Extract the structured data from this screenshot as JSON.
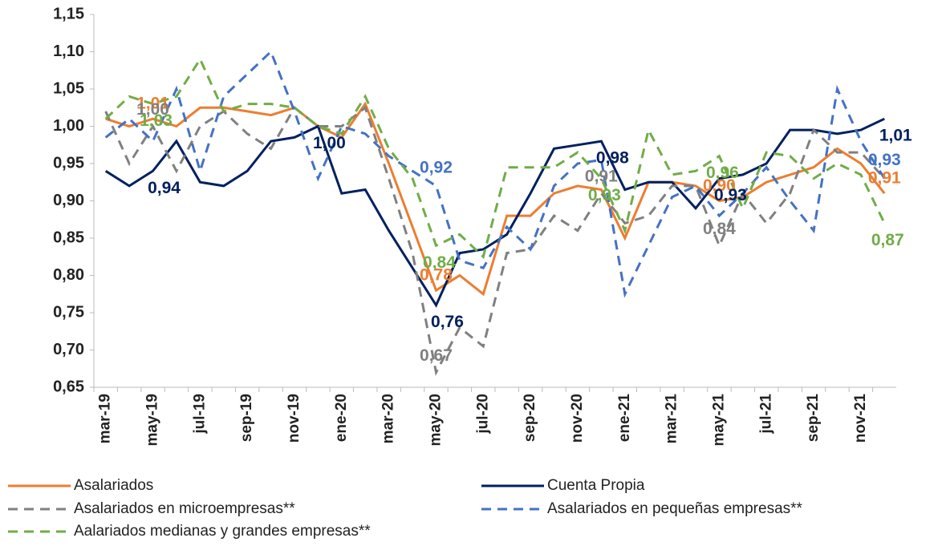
{
  "chart_data": {
    "type": "line",
    "categories": [
      "mar-19",
      null,
      "may-19",
      null,
      "jul-19",
      null,
      "sep-19",
      null,
      "nov-19",
      null,
      "ene-20",
      null,
      "mar-20",
      null,
      "may-20",
      null,
      "jul-20",
      null,
      "sep-20",
      null,
      "nov-20",
      null,
      "ene-21",
      null,
      "mar-21",
      null,
      "may-21",
      null,
      "jul-21",
      null,
      "sep-21",
      null,
      "nov-21",
      null
    ],
    "ylim": [
      0.65,
      1.15
    ],
    "yticks": [
      {
        "value": 0.65,
        "label": "0,65"
      },
      {
        "value": 0.7,
        "label": "0,70"
      },
      {
        "value": 0.75,
        "label": "0,75"
      },
      {
        "value": 0.8,
        "label": "0,80"
      },
      {
        "value": 0.85,
        "label": "0,85"
      },
      {
        "value": 0.9,
        "label": "0,90"
      },
      {
        "value": 0.95,
        "label": "0,95"
      },
      {
        "value": 1.0,
        "label": "1,00"
      },
      {
        "value": 1.05,
        "label": "1,05"
      },
      {
        "value": 1.1,
        "label": "1,10"
      },
      {
        "value": 1.15,
        "label": "1,15"
      }
    ],
    "series": [
      {
        "name": "Asalariados",
        "color": "#ed7d31",
        "dashed": false,
        "values": [
          1.01,
          1.0,
          1.01,
          1.0,
          1.025,
          1.025,
          1.02,
          1.015,
          1.025,
          1.0,
          0.985,
          1.03,
          0.95,
          0.865,
          0.78,
          0.8,
          0.775,
          0.88,
          0.88,
          0.91,
          0.92,
          0.915,
          0.85,
          0.925,
          0.925,
          0.92,
          0.9,
          0.905,
          0.925,
          0.935,
          0.945,
          0.97,
          0.95,
          0.91
        ],
        "value_labels": [
          null,
          null,
          "1,01",
          null,
          null,
          null,
          null,
          null,
          null,
          null,
          null,
          null,
          null,
          null,
          "0,78",
          null,
          null,
          null,
          null,
          null,
          null,
          null,
          null,
          null,
          null,
          null,
          "0,90",
          null,
          null,
          null,
          null,
          null,
          null,
          "0,91"
        ]
      },
      {
        "name": "Cuenta Propia",
        "color": "#002060",
        "dashed": false,
        "values": [
          0.94,
          0.92,
          0.94,
          0.98,
          0.925,
          0.92,
          0.94,
          0.98,
          0.985,
          1.0,
          0.91,
          0.915,
          0.86,
          0.81,
          0.76,
          0.83,
          0.835,
          0.855,
          0.91,
          0.97,
          0.975,
          0.98,
          0.915,
          0.925,
          0.925,
          0.89,
          0.93,
          0.935,
          0.95,
          0.995,
          0.995,
          0.99,
          0.995,
          1.01
        ],
        "value_labels": [
          null,
          null,
          "0,94",
          null,
          null,
          null,
          null,
          null,
          null,
          "1,00",
          null,
          null,
          null,
          null,
          "0,76",
          null,
          null,
          null,
          null,
          null,
          null,
          "0,98",
          null,
          null,
          null,
          null,
          "0,93",
          null,
          null,
          null,
          null,
          null,
          null,
          "1,01"
        ]
      },
      {
        "name": "Asalariados en microempresas**",
        "color": "#808080",
        "dashed": true,
        "values": [
          1.02,
          0.95,
          1.0,
          0.94,
          1.0,
          1.02,
          0.99,
          0.97,
          1.025,
          1.0,
          1.0,
          1.025,
          0.93,
          0.83,
          0.67,
          0.73,
          0.705,
          0.83,
          0.835,
          0.88,
          0.86,
          0.91,
          0.87,
          0.88,
          0.92,
          0.92,
          0.84,
          0.91,
          0.87,
          0.91,
          0.995,
          0.965,
          0.965,
          0.93
        ],
        "value_labels": [
          null,
          null,
          "1,00",
          null,
          null,
          null,
          null,
          null,
          null,
          null,
          null,
          null,
          null,
          null,
          "0,67",
          null,
          null,
          null,
          null,
          null,
          null,
          "0,91",
          null,
          null,
          null,
          null,
          "0,84",
          null,
          null,
          null,
          null,
          null,
          null,
          null
        ]
      },
      {
        "name": "Asalariados en pequeñas empresas**",
        "color": "#4472c4",
        "dashed": true,
        "values": [
          0.985,
          1.01,
          0.98,
          1.05,
          0.94,
          1.04,
          1.07,
          1.1,
          1.02,
          0.93,
          1.0,
          0.99,
          0.96,
          0.94,
          0.92,
          0.82,
          0.81,
          0.865,
          0.835,
          0.92,
          0.95,
          0.955,
          0.775,
          0.84,
          0.905,
          0.92,
          0.88,
          0.91,
          0.945,
          0.9,
          0.86,
          1.05,
          0.98,
          0.93
        ],
        "value_labels": [
          null,
          null,
          null,
          null,
          null,
          null,
          null,
          null,
          null,
          null,
          null,
          null,
          null,
          null,
          "0,92",
          null,
          null,
          null,
          null,
          null,
          null,
          null,
          null,
          null,
          null,
          null,
          null,
          null,
          null,
          null,
          null,
          null,
          null,
          "0,93"
        ]
      },
      {
        "name": "Aalariados medianas y grandes empresas**",
        "color": "#70ad47",
        "dashed": true,
        "values": [
          1.01,
          1.04,
          1.03,
          1.04,
          1.09,
          1.02,
          1.03,
          1.03,
          1.025,
          1.0,
          0.99,
          1.04,
          0.97,
          0.93,
          0.84,
          0.855,
          0.825,
          0.945,
          0.945,
          0.945,
          0.965,
          0.93,
          0.86,
          0.995,
          0.935,
          0.94,
          0.96,
          0.89,
          0.965,
          0.96,
          0.93,
          0.95,
          0.935,
          0.87
        ],
        "value_labels": [
          null,
          null,
          "1,03",
          null,
          null,
          null,
          null,
          null,
          null,
          null,
          null,
          null,
          null,
          null,
          "0,84",
          null,
          null,
          null,
          null,
          null,
          null,
          "0,93",
          null,
          null,
          null,
          null,
          "0,96",
          null,
          null,
          null,
          null,
          null,
          null,
          "0,87"
        ]
      }
    ]
  }
}
